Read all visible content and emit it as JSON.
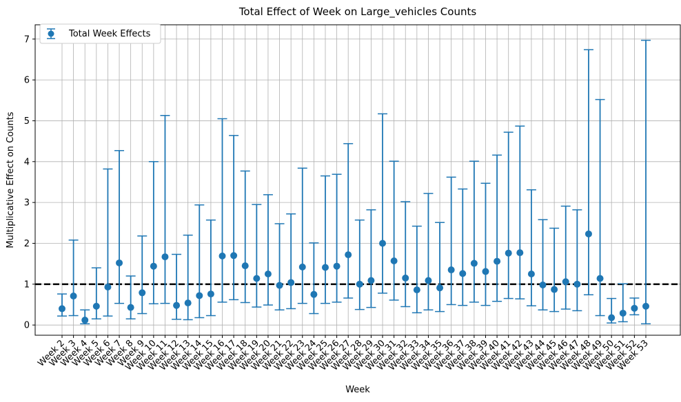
{
  "chart_data": {
    "type": "scatter",
    "title": "Total Effect of Week on Large_vehicles Counts",
    "xlabel": "Week",
    "ylabel": "Multiplicative Effect on Counts",
    "ylim": [
      -0.25,
      7.35
    ],
    "yticks": [
      0,
      1,
      2,
      3,
      4,
      5,
      6,
      7
    ],
    "grid": true,
    "legend_position": "top-left",
    "reference_line": 1,
    "colors": {
      "series": "#1f77b4",
      "reference": "#000000"
    },
    "categories": [
      "Week 2",
      "Week 3",
      "Week 4",
      "Week 5",
      "Week 6",
      "Week 7",
      "Week 8",
      "Week 9",
      "Week 10",
      "Week 11",
      "Week 12",
      "Week 13",
      "Week 14",
      "Week 15",
      "Week 16",
      "Week 17",
      "Week 18",
      "Week 19",
      "Week 20",
      "Week 21",
      "Week 22",
      "Week 23",
      "Week 24",
      "Week 25",
      "Week 26",
      "Week 27",
      "Week 28",
      "Week 29",
      "Week 30",
      "Week 31",
      "Week 32",
      "Week 33",
      "Week 34",
      "Week 35",
      "Week 36",
      "Week 37",
      "Week 38",
      "Week 39",
      "Week 40",
      "Week 41",
      "Week 42",
      "Week 43",
      "Week 44",
      "Week 45",
      "Week 46",
      "Week 47",
      "Week 48",
      "Week 49",
      "Week 50",
      "Week 51",
      "Week 52",
      "Week 53"
    ],
    "series": [
      {
        "name": "Total Week Effects",
        "values": [
          0.4,
          0.71,
          0.12,
          0.46,
          0.93,
          1.52,
          0.43,
          0.79,
          1.44,
          1.67,
          0.48,
          0.54,
          0.72,
          0.76,
          1.69,
          1.7,
          1.45,
          1.14,
          1.25,
          0.97,
          1.04,
          1.42,
          0.75,
          1.41,
          1.44,
          1.72,
          1.0,
          1.09,
          2.0,
          1.57,
          1.15,
          0.86,
          1.09,
          0.91,
          1.35,
          1.26,
          1.51,
          1.31,
          1.56,
          1.76,
          1.77,
          1.25,
          0.98,
          0.87,
          1.06,
          1.0,
          2.23,
          1.14,
          0.18,
          0.29,
          0.41,
          0.46
        ],
        "lower": [
          0.22,
          0.23,
          0.03,
          0.15,
          0.22,
          0.53,
          0.15,
          0.28,
          0.52,
          0.53,
          0.14,
          0.13,
          0.18,
          0.23,
          0.56,
          0.62,
          0.55,
          0.44,
          0.49,
          0.37,
          0.4,
          0.53,
          0.28,
          0.53,
          0.56,
          0.66,
          0.38,
          0.43,
          0.78,
          0.61,
          0.45,
          0.3,
          0.37,
          0.33,
          0.5,
          0.48,
          0.56,
          0.48,
          0.58,
          0.65,
          0.64,
          0.47,
          0.37,
          0.33,
          0.39,
          0.35,
          0.74,
          0.23,
          0.05,
          0.08,
          0.25,
          0.03
        ],
        "upper": [
          0.76,
          2.08,
          0.37,
          1.4,
          3.82,
          4.27,
          1.2,
          2.18,
          4.0,
          5.13,
          1.73,
          2.2,
          2.94,
          2.57,
          5.05,
          4.64,
          3.77,
          2.95,
          3.19,
          2.48,
          2.72,
          3.84,
          2.01,
          3.65,
          3.69,
          4.44,
          2.57,
          2.82,
          5.17,
          4.01,
          3.02,
          2.42,
          3.22,
          2.51,
          3.62,
          3.33,
          4.01,
          3.47,
          4.16,
          4.72,
          4.87,
          3.31,
          2.58,
          2.37,
          2.91,
          2.82,
          6.74,
          5.52,
          0.65,
          1.01,
          0.66,
          6.97
        ]
      }
    ]
  }
}
